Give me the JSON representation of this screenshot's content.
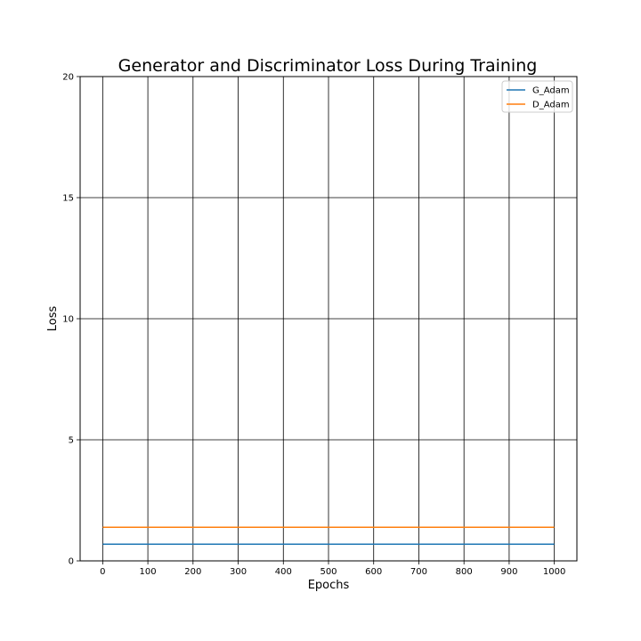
{
  "chart_data": {
    "type": "line",
    "title": "Generator and Discriminator Loss During Training",
    "xlabel": "Epochs",
    "ylabel": "Loss",
    "xlim": [
      -50,
      1050
    ],
    "ylim": [
      0,
      20
    ],
    "xticks": [
      0,
      100,
      200,
      300,
      400,
      500,
      600,
      700,
      800,
      900,
      1000
    ],
    "yticks": [
      0,
      5,
      10,
      15,
      20
    ],
    "grid": true,
    "grid_color": "#000000",
    "legend_position": "top-right",
    "series": [
      {
        "name": "G_Adam",
        "color": "#1f77b4",
        "x": [
          0,
          1000
        ],
        "y": [
          0.69,
          0.69
        ]
      },
      {
        "name": "D_Adam",
        "color": "#ff7f0e",
        "x": [
          0,
          1000
        ],
        "y": [
          1.39,
          1.39
        ]
      }
    ]
  }
}
